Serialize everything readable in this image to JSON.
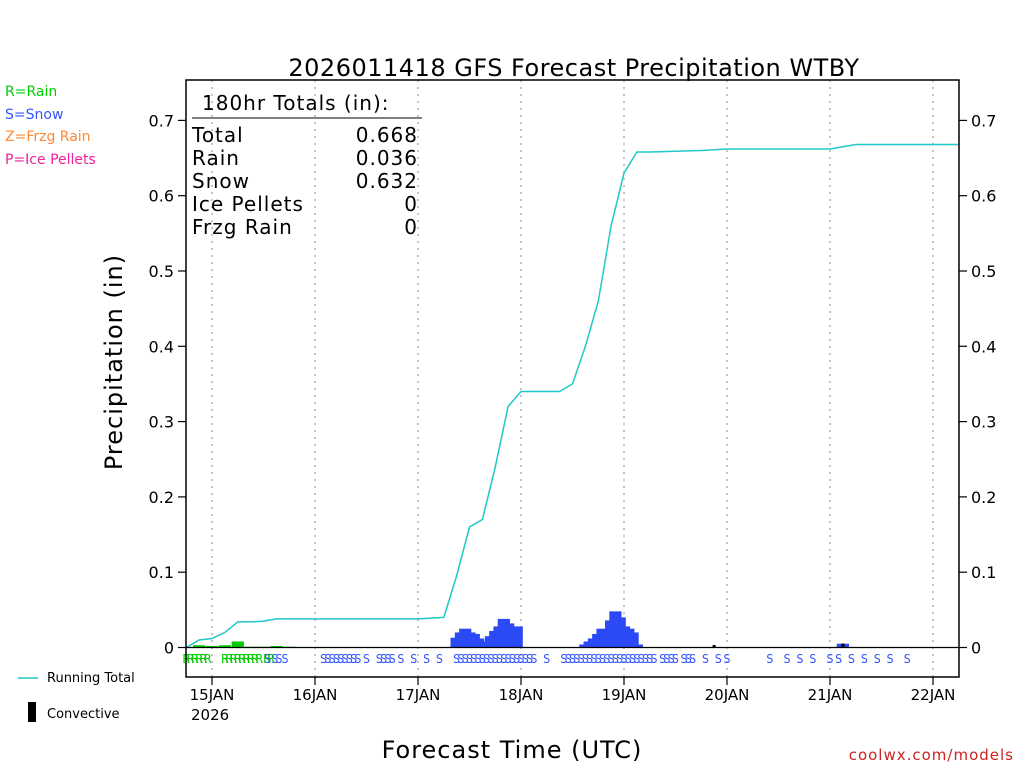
{
  "chart_data": {
    "type": "line",
    "title": "2026011418 GFS Forecast Precipitation WTBY",
    "xlabel": "Forecast Time (UTC)",
    "ylabel": "Precipitation (in)",
    "ylim": [
      -0.0066,
      0.74
    ],
    "xlim_hours": [
      -3,
      183
    ],
    "yticks": [
      0,
      0.1,
      0.2,
      0.3,
      0.4,
      0.5,
      0.6,
      0.7
    ],
    "ytick_labels": [
      "0",
      "0.1",
      "0.2",
      "0.3",
      "0.4",
      "0.5",
      "0.6",
      "0.7"
    ],
    "xtick_hours": [
      6,
      30,
      54,
      78,
      102,
      126,
      150,
      174
    ],
    "xtick_labels": [
      "15JAN",
      "16JAN",
      "17JAN",
      "18JAN",
      "19JAN",
      "20JAN",
      "21JAN",
      "22JAN"
    ],
    "year_label": "2026",
    "legend_types": [
      {
        "label": "R=Rain",
        "color": "#00cc00"
      },
      {
        "label": "S=Snow",
        "color": "#3355ff"
      },
      {
        "label": "Z=Frzg Rain",
        "color": "#ff8833"
      },
      {
        "label": "P=Ice Pellets",
        "color": "#ee2299"
      }
    ],
    "legend_series": {
      "running_total": "Running Total",
      "convective": "Convective"
    },
    "totals": {
      "header": "180hr Totals (in):",
      "rows": [
        {
          "label": "Total",
          "value": "0.668"
        },
        {
          "label": "Rain",
          "value": "0.036"
        },
        {
          "label": "Snow",
          "value": "0.632"
        },
        {
          "label": "Ice Pellets",
          "value": "0"
        },
        {
          "label": "Frzg Rain",
          "value": "0"
        }
      ]
    },
    "series": [
      {
        "name": "Running Total",
        "color": "#20c8c8",
        "x": [
          0,
          3,
          6,
          9,
          12,
          15,
          18,
          21,
          24,
          27,
          30,
          36,
          42,
          48,
          54,
          60,
          63,
          66,
          69,
          72,
          75,
          78,
          81,
          84,
          87,
          90,
          93,
          96,
          99,
          102,
          105,
          108,
          120,
          126,
          150,
          156,
          180
        ],
        "y": [
          0,
          0.01,
          0.012,
          0.02,
          0.034,
          0.034,
          0.035,
          0.038,
          0.038,
          0.038,
          0.038,
          0.038,
          0.038,
          0.038,
          0.038,
          0.04,
          0.095,
          0.16,
          0.17,
          0.24,
          0.32,
          0.34,
          0.34,
          0.34,
          0.34,
          0.35,
          0.4,
          0.46,
          0.56,
          0.63,
          0.658,
          0.658,
          0.66,
          0.662,
          0.662,
          0.668,
          0.668
        ]
      },
      {
        "name": "Convective",
        "color": "#000000",
        "x": [
          123,
          153
        ],
        "y": [
          0.002,
          0.004
        ]
      }
    ],
    "bars": {
      "name": "Precipitation per step",
      "color": "#2b4af5",
      "x": [
        3,
        6,
        9,
        12,
        15,
        18,
        21,
        24,
        63,
        64,
        65,
        66,
        67,
        68,
        69,
        71,
        72,
        73,
        74,
        75,
        76,
        77,
        93,
        94,
        95,
        96,
        97,
        98,
        99,
        100,
        101,
        102,
        103,
        104,
        105,
        153
      ],
      "y": [
        0.003,
        0.002,
        0.003,
        0.008,
        0.001,
        0.001,
        0.002,
        0.001,
        0.013,
        0.02,
        0.025,
        0.02,
        0.018,
        0.012,
        0.008,
        0.015,
        0.022,
        0.028,
        0.038,
        0.032,
        0.025,
        0.028,
        0.004,
        0.008,
        0.012,
        0.018,
        0.025,
        0.02,
        0.036,
        0.048,
        0.04,
        0.028,
        0.025,
        0.02,
        0.004,
        0.005
      ],
      "rain_color": "#00cc00"
    },
    "ptype_row": {
      "rain": [
        0,
        1,
        2,
        3,
        4,
        5,
        9,
        10,
        11,
        12,
        13,
        14,
        15,
        16,
        17
      ],
      "rain_snow": [
        20,
        21
      ],
      "snow": [
        19,
        23,
        32,
        33,
        34,
        35,
        36,
        37,
        38,
        39,
        40,
        42,
        45,
        46,
        47,
        48,
        50,
        53,
        56,
        59,
        63,
        64,
        65,
        66,
        67,
        68,
        69,
        70,
        71,
        72,
        73,
        74,
        75,
        76,
        77,
        78,
        79,
        80,
        81,
        84,
        88,
        89,
        90,
        91,
        92,
        93,
        94,
        95,
        96,
        97,
        98,
        99,
        100,
        101,
        102,
        103,
        104,
        105,
        106,
        107,
        108,
        109,
        111,
        112,
        113,
        114,
        116,
        117,
        118,
        121,
        124,
        126,
        136,
        140,
        143,
        146,
        150,
        152,
        155,
        158,
        161,
        164,
        168
      ]
    },
    "footer_credit": "coolwx.com/models"
  }
}
